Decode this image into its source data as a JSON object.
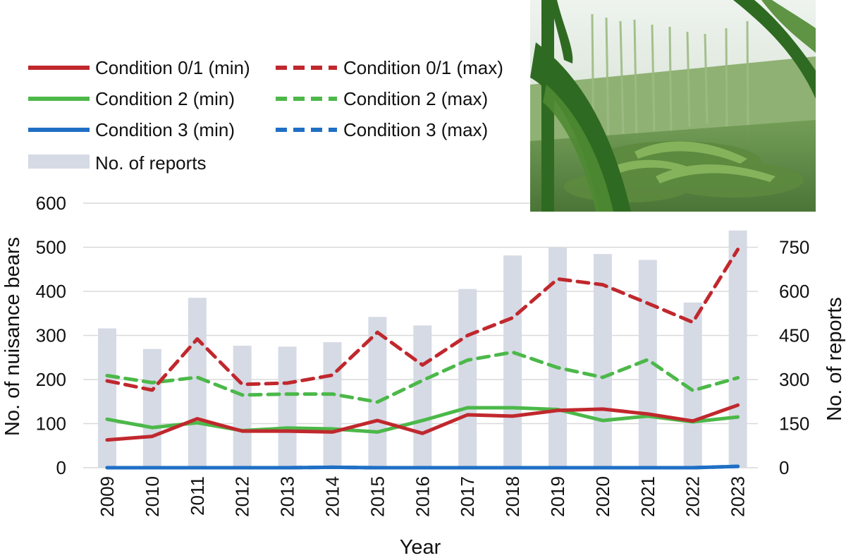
{
  "chart_data": {
    "type": "line",
    "title": "",
    "xlabel": "Year",
    "ylabel": "No. of nuisance bears",
    "y2label": "No. of reports",
    "ylim": [
      0,
      600
    ],
    "y2lim": [
      0,
      900
    ],
    "yticks": [
      "0",
      "100",
      "200",
      "300",
      "400",
      "500",
      "600"
    ],
    "y2ticks": [
      "0",
      "150",
      "300",
      "450",
      "600",
      "750"
    ],
    "categories": [
      "2009",
      "2010",
      "2011",
      "2012",
      "2013",
      "2014",
      "2015",
      "2016",
      "2017",
      "2018",
      "2019",
      "2020",
      "2021",
      "2022",
      "2023"
    ],
    "grid": true,
    "legend_position": "top-left",
    "series": [
      {
        "name": "Condition 0/1 (min)",
        "axis": "left",
        "style": "solid",
        "color": "#c0282d",
        "values": [
          63,
          71,
          111,
          83,
          83,
          81,
          107,
          78,
          120,
          117,
          130,
          133,
          122,
          106,
          142
        ]
      },
      {
        "name": "Condition 0/1 (max)",
        "axis": "left",
        "style": "dashed",
        "color": "#c0282d",
        "values": [
          197,
          176,
          292,
          189,
          192,
          210,
          307,
          233,
          300,
          340,
          428,
          415,
          373,
          330,
          495
        ]
      },
      {
        "name": "Condition 2 (min)",
        "axis": "left",
        "style": "solid",
        "color": "#4cb849",
        "values": [
          110,
          91,
          102,
          84,
          90,
          88,
          81,
          107,
          136,
          136,
          132,
          107,
          117,
          104,
          115
        ]
      },
      {
        "name": "Condition 2 (max)",
        "axis": "left",
        "style": "dashed",
        "color": "#4cb849",
        "values": [
          209,
          193,
          205,
          165,
          167,
          167,
          149,
          198,
          244,
          262,
          227,
          205,
          245,
          175,
          204
        ]
      },
      {
        "name": "Condition 3 (min)",
        "axis": "left",
        "style": "solid",
        "color": "#1f6fc5",
        "values": [
          0,
          0,
          0,
          0,
          0,
          1,
          0,
          0,
          0,
          0,
          0,
          0,
          0,
          0,
          3
        ]
      },
      {
        "name": "Condition 3 (max)",
        "axis": "left",
        "style": "dashed",
        "color": "#1f6fc5",
        "values": [
          0,
          0,
          0,
          0,
          0,
          1,
          0,
          0,
          0,
          0,
          0,
          0,
          0,
          0,
          3
        ]
      },
      {
        "name": "No. of reports",
        "axis": "right",
        "type": "bar",
        "color": "#d5dae5",
        "values": [
          474,
          404,
          578,
          415,
          412,
          427,
          513,
          484,
          608,
          722,
          750,
          727,
          707,
          562,
          807
        ]
      }
    ]
  },
  "photo": {
    "subject": "cornfield-damage-photo"
  }
}
